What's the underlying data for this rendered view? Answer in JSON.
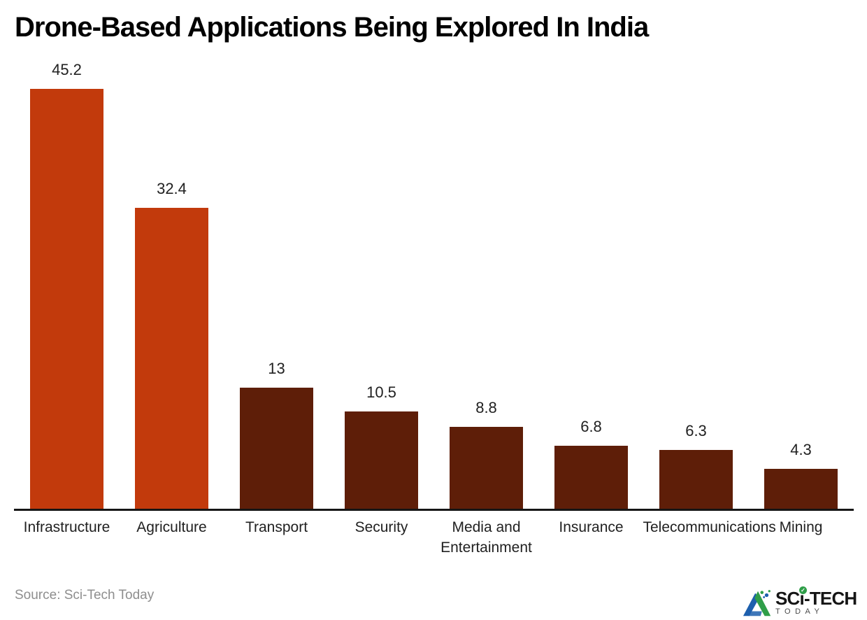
{
  "title": "Drone-Based Applications Being Explored In India",
  "source_text": "Source: Sci-Tech Today",
  "logo": {
    "name_prefix": "SC",
    "name_i": "ı",
    "check": "✓",
    "name_suffix": "-TECH",
    "tagline": "TODAY"
  },
  "colors": {
    "highlight_bar": "#c23a0c",
    "dark_bar": "#5e1e08",
    "axis": "#161616",
    "value_label": "#212121",
    "category_label": "#212121",
    "source_text": "#8e8e8e",
    "logo_green": "#2f9e49",
    "logo_blue": "#1d5fad",
    "background": "#ffffff"
  },
  "chart_data": {
    "type": "bar",
    "title": "Drone-Based Applications Being Explored In India",
    "categories": [
      "Infrastructure",
      "Agriculture",
      "Transport",
      "Security",
      "Media and Entertainment",
      "Insurance",
      "Telecommunications",
      "Mining"
    ],
    "values": [
      45.2,
      32.4,
      13,
      10.5,
      8.8,
      6.8,
      6.3,
      4.3
    ],
    "bar_colors": [
      "#c23a0c",
      "#c23a0c",
      "#5e1e08",
      "#5e1e08",
      "#5e1e08",
      "#5e1e08",
      "#5e1e08",
      "#5e1e08"
    ],
    "value_labels_shown": true,
    "xlabel": "",
    "ylabel": "",
    "ylim": [
      0,
      48
    ],
    "grid": false,
    "legend": null,
    "source": "Sci-Tech Today"
  }
}
